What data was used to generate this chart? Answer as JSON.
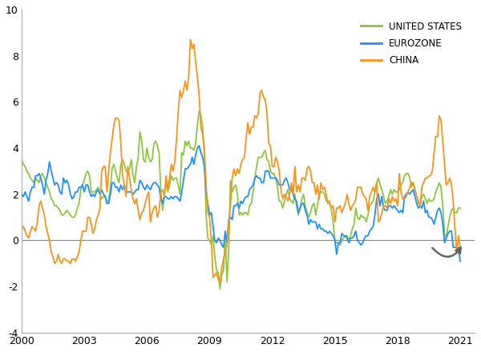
{
  "xlim": [
    2000,
    2021.7
  ],
  "ylim": [
    -4,
    10
  ],
  "yticks": [
    -4,
    -2,
    0,
    2,
    4,
    6,
    8,
    10
  ],
  "xticks": [
    2000,
    2003,
    2006,
    2009,
    2012,
    2015,
    2018,
    2021
  ],
  "colors": {
    "us": "#8DC63F",
    "ez": "#1E90FF",
    "cn": "#F7941D"
  },
  "legend": {
    "us": "UNITED STATES",
    "ez": "EUROZONE",
    "cn": "CHINA"
  },
  "linewidth": 1.3,
  "background": "#ffffff"
}
